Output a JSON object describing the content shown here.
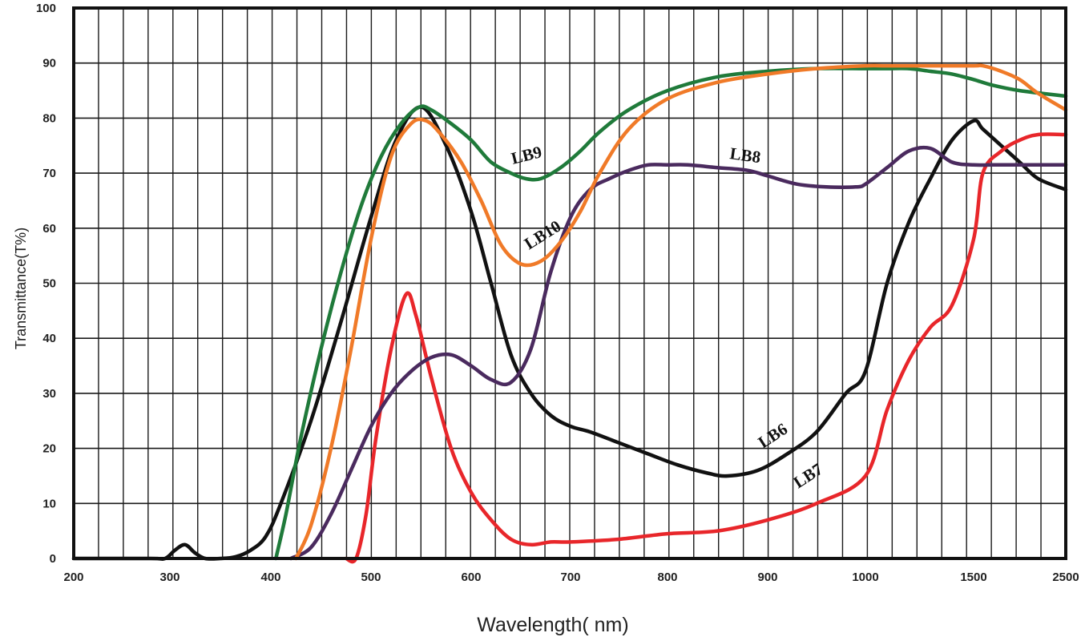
{
  "chart_data": {
    "type": "line",
    "xlabel": "Wavelength( nm)",
    "ylabel": "Transmittance(T%)",
    "ylim": [
      0,
      100
    ],
    "x_ticks": [
      "200",
      "300",
      "400",
      "500",
      "600",
      "700",
      "800",
      "900",
      "1000",
      "1500",
      "2500"
    ],
    "y_ticks": [
      "0",
      "10",
      "20",
      "30",
      "40",
      "50",
      "60",
      "70",
      "80",
      "90",
      "100"
    ],
    "grid": true,
    "series": [
      {
        "name": "LB6",
        "color": "#111111",
        "label": "LB6",
        "points": [
          [
            200,
            0
          ],
          [
            280,
            0
          ],
          [
            295,
            0
          ],
          [
            305,
            1.5
          ],
          [
            315,
            2.5
          ],
          [
            325,
            1
          ],
          [
            335,
            0
          ],
          [
            350,
            0
          ],
          [
            365,
            0.3
          ],
          [
            380,
            1.5
          ],
          [
            395,
            4
          ],
          [
            410,
            10
          ],
          [
            440,
            25
          ],
          [
            470,
            43
          ],
          [
            500,
            62
          ],
          [
            525,
            76
          ],
          [
            550,
            82
          ],
          [
            575,
            75
          ],
          [
            600,
            63
          ],
          [
            620,
            50
          ],
          [
            640,
            37
          ],
          [
            660,
            30
          ],
          [
            680,
            26
          ],
          [
            700,
            24
          ],
          [
            720,
            23
          ],
          [
            750,
            21
          ],
          [
            780,
            19
          ],
          [
            810,
            17
          ],
          [
            840,
            15.5
          ],
          [
            860,
            15
          ],
          [
            890,
            16
          ],
          [
            920,
            19
          ],
          [
            950,
            23
          ],
          [
            980,
            30
          ],
          [
            1000,
            34
          ],
          [
            1100,
            50
          ],
          [
            1200,
            61
          ],
          [
            1300,
            69
          ],
          [
            1400,
            76
          ],
          [
            1500,
            79.5
          ],
          [
            1600,
            78
          ],
          [
            1800,
            75
          ],
          [
            2000,
            72
          ],
          [
            2200,
            69
          ],
          [
            2500,
            67
          ]
        ]
      },
      {
        "name": "LB7",
        "color": "#e8262a",
        "label": "LB7",
        "points": [
          [
            475,
            0
          ],
          [
            485,
            0
          ],
          [
            495,
            8
          ],
          [
            505,
            22
          ],
          [
            520,
            38
          ],
          [
            535,
            48
          ],
          [
            545,
            44
          ],
          [
            560,
            33
          ],
          [
            580,
            20
          ],
          [
            600,
            12
          ],
          [
            620,
            7
          ],
          [
            640,
            3.5
          ],
          [
            660,
            2.5
          ],
          [
            680,
            3
          ],
          [
            700,
            3
          ],
          [
            750,
            3.5
          ],
          [
            800,
            4.5
          ],
          [
            850,
            5
          ],
          [
            900,
            7
          ],
          [
            950,
            10
          ],
          [
            1000,
            15
          ],
          [
            1100,
            27
          ],
          [
            1200,
            36
          ],
          [
            1300,
            42
          ],
          [
            1400,
            46
          ],
          [
            1500,
            58
          ],
          [
            1600,
            70
          ],
          [
            1800,
            74
          ],
          [
            2000,
            76
          ],
          [
            2200,
            77
          ],
          [
            2500,
            77
          ]
        ]
      },
      {
        "name": "LB8",
        "color": "#4a2a5e",
        "label": "LB8",
        "points": [
          [
            420,
            0
          ],
          [
            440,
            2
          ],
          [
            460,
            8
          ],
          [
            480,
            16
          ],
          [
            500,
            24
          ],
          [
            520,
            30
          ],
          [
            540,
            34
          ],
          [
            560,
            36.5
          ],
          [
            580,
            37
          ],
          [
            600,
            35
          ],
          [
            620,
            32.5
          ],
          [
            640,
            32
          ],
          [
            660,
            38
          ],
          [
            680,
            52
          ],
          [
            700,
            62
          ],
          [
            720,
            67
          ],
          [
            740,
            69
          ],
          [
            760,
            70.5
          ],
          [
            780,
            71.5
          ],
          [
            800,
            71.5
          ],
          [
            820,
            71.5
          ],
          [
            850,
            71
          ],
          [
            880,
            70.5
          ],
          [
            900,
            69.5
          ],
          [
            930,
            68
          ],
          [
            960,
            67.5
          ],
          [
            990,
            67.5
          ],
          [
            1000,
            68
          ],
          [
            1100,
            71
          ],
          [
            1200,
            74
          ],
          [
            1300,
            74.5
          ],
          [
            1400,
            72
          ],
          [
            1500,
            71.5
          ],
          [
            1700,
            71.5
          ],
          [
            2000,
            71.5
          ],
          [
            2500,
            71.5
          ]
        ]
      },
      {
        "name": "LB9",
        "color": "#1f7a3a",
        "label": "LB9",
        "points": [
          [
            405,
            0
          ],
          [
            415,
            8
          ],
          [
            430,
            22
          ],
          [
            450,
            38
          ],
          [
            470,
            52
          ],
          [
            490,
            64
          ],
          [
            510,
            73
          ],
          [
            530,
            79
          ],
          [
            548,
            82
          ],
          [
            560,
            81.5
          ],
          [
            580,
            79
          ],
          [
            600,
            76
          ],
          [
            620,
            72
          ],
          [
            640,
            70
          ],
          [
            655,
            69
          ],
          [
            670,
            69
          ],
          [
            690,
            71
          ],
          [
            710,
            74
          ],
          [
            730,
            77.5
          ],
          [
            760,
            81.5
          ],
          [
            800,
            85
          ],
          [
            850,
            87.5
          ],
          [
            900,
            88.5
          ],
          [
            950,
            89
          ],
          [
            1000,
            89
          ],
          [
            1100,
            89
          ],
          [
            1200,
            89
          ],
          [
            1300,
            88.5
          ],
          [
            1400,
            88
          ],
          [
            1500,
            87
          ],
          [
            1700,
            86
          ],
          [
            2000,
            85
          ],
          [
            2500,
            84
          ]
        ]
      },
      {
        "name": "LB10",
        "color": "#f07a28",
        "label": "LB10",
        "points": [
          [
            425,
            0
          ],
          [
            440,
            6
          ],
          [
            460,
            20
          ],
          [
            480,
            38
          ],
          [
            500,
            58
          ],
          [
            520,
            73
          ],
          [
            540,
            79
          ],
          [
            555,
            79.5
          ],
          [
            570,
            77
          ],
          [
            590,
            72
          ],
          [
            610,
            65
          ],
          [
            630,
            57
          ],
          [
            650,
            53.5
          ],
          [
            670,
            54
          ],
          [
            690,
            57.5
          ],
          [
            710,
            63
          ],
          [
            730,
            70
          ],
          [
            760,
            78
          ],
          [
            800,
            83.5
          ],
          [
            850,
            86.5
          ],
          [
            900,
            88
          ],
          [
            950,
            89
          ],
          [
            1000,
            89.5
          ],
          [
            1100,
            89.5
          ],
          [
            1300,
            89.5
          ],
          [
            1500,
            89.5
          ],
          [
            1600,
            89.5
          ],
          [
            1800,
            88.5
          ],
          [
            2000,
            87
          ],
          [
            2200,
            84.5
          ],
          [
            2500,
            81.5
          ]
        ]
      }
    ]
  }
}
